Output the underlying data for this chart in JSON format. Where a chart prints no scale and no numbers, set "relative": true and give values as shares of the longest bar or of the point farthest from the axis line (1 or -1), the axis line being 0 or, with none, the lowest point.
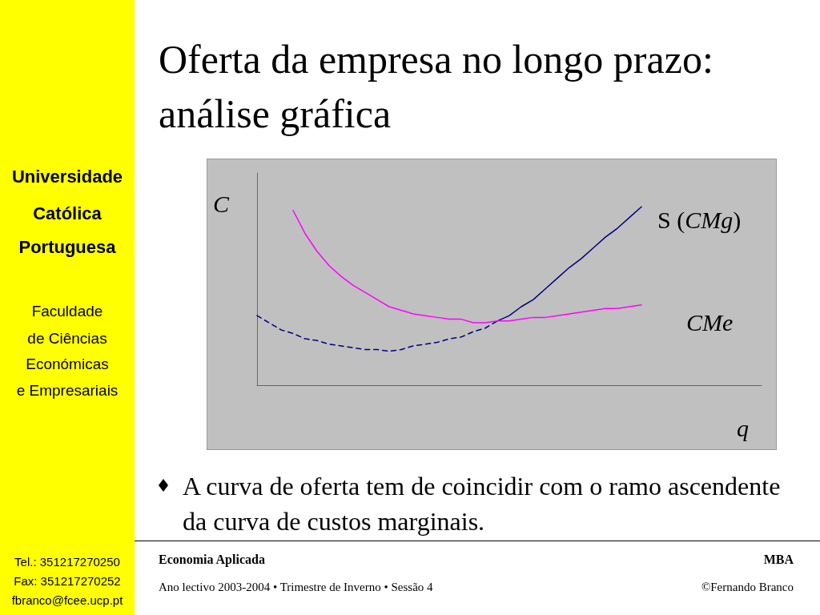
{
  "chart_data": {
    "type": "line",
    "title": "Oferta da empresa no longo prazo: análise gráfica",
    "xlabel": "q",
    "ylabel": "C",
    "relative": true,
    "marker": "none",
    "categories": [
      null,
      null,
      null,
      null,
      null,
      null,
      null,
      null,
      null,
      null,
      null,
      null,
      null,
      null,
      null,
      null,
      null,
      null,
      null,
      null,
      null,
      null,
      null,
      null,
      null,
      null,
      null,
      null,
      null,
      null,
      null,
      null,
      null,
      null,
      null,
      null,
      null,
      null,
      null,
      null,
      null,
      null,
      null
    ],
    "series": [
      {
        "color": "#000080",
        "line_style": "dashed",
        "values": [
          0.39,
          0.35,
          0.31,
          0.29,
          0.26,
          0.25,
          0.23,
          0.22,
          0.21,
          0.2,
          0.2,
          0.19,
          0.2,
          0.22,
          0.23,
          0.24,
          0.26,
          0.27,
          0.3,
          0.32,
          0.36,
          null,
          null,
          null,
          null,
          null,
          null,
          null,
          null,
          null,
          null,
          null,
          null,
          null,
          null,
          null,
          null,
          null,
          null,
          null,
          null,
          null,
          null
        ]
      },
      {
        "name": "S (CMg)",
        "color": "#000080",
        "line_style": "solid",
        "values": [
          null,
          null,
          null,
          null,
          null,
          null,
          null,
          null,
          null,
          null,
          null,
          null,
          null,
          null,
          null,
          null,
          null,
          null,
          null,
          null,
          0.36,
          0.39,
          0.44,
          0.48,
          0.54,
          0.6,
          0.66,
          0.71,
          0.77,
          0.83,
          0.88,
          0.94,
          1.0,
          null,
          null,
          null,
          null,
          null,
          null,
          null,
          null,
          null,
          null
        ]
      },
      {
        "name": "CMe",
        "color": "#ff00ff",
        "line_style": "solid",
        "values": [
          null,
          null,
          null,
          0.98,
          0.85,
          0.75,
          0.67,
          0.61,
          0.56,
          0.52,
          0.48,
          0.44,
          0.42,
          0.4,
          0.39,
          0.38,
          0.37,
          0.37,
          0.35,
          0.35,
          0.36,
          0.36,
          0.37,
          0.38,
          0.38,
          0.39,
          0.4,
          0.41,
          0.42,
          0.43,
          0.43,
          0.44,
          0.45,
          null,
          null,
          null,
          null,
          null,
          null,
          null,
          null,
          null,
          null
        ]
      }
    ],
    "annotations": [
      "Universidade",
      "Católica",
      "Portuguesa",
      "Faculdade",
      "de Ciências",
      "Económicas",
      "e Empresariais",
      "Tel.: 351217270250",
      "Fax: 351217270252",
      "fbranco@fcee.ucp.pt",
      "A curva de oferta tem de coincidir com o ramo ascendente da curva de custos marginais.",
      "Economia Aplicada",
      "MBA",
      "Ano lectivo 2003-2004 • Trimestre de Inverno • Sessão 4",
      "©Fernando Branco"
    ]
  }
}
